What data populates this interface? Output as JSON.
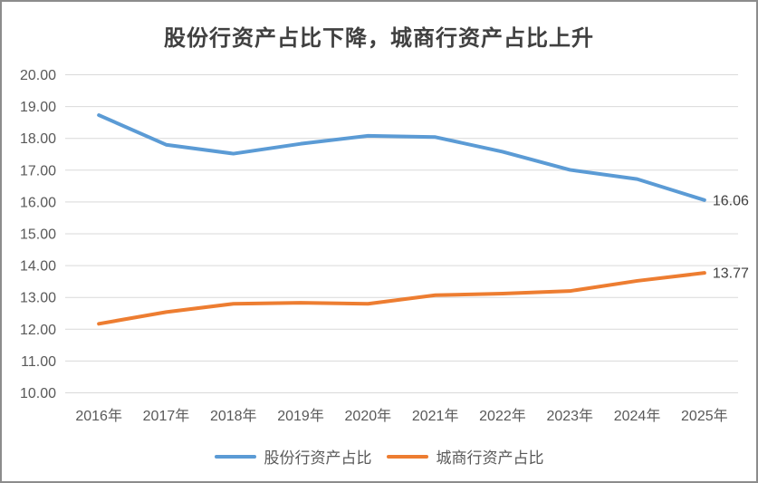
{
  "chart_data": {
    "type": "line",
    "title": "股份行资产占比下降，城商行资产占比上升",
    "categories": [
      "2016年",
      "2017年",
      "2018年",
      "2019年",
      "2020年",
      "2021年",
      "2022年",
      "2023年",
      "2024年",
      "2025年"
    ],
    "series": [
      {
        "name": "股份行资产占比",
        "color": "#5B9BD5",
        "values": [
          18.73,
          17.8,
          17.52,
          17.83,
          18.08,
          18.04,
          17.58,
          17.01,
          16.72,
          16.06
        ],
        "end_label": "16.06"
      },
      {
        "name": "城商行资产占比",
        "color": "#ED7D31",
        "values": [
          12.17,
          12.54,
          12.8,
          12.83,
          12.8,
          13.07,
          13.12,
          13.2,
          13.52,
          13.77
        ],
        "end_label": "13.77"
      }
    ],
    "ylim": [
      10,
      20
    ],
    "ytick_step": 1,
    "ytick_format_decimals": 2,
    "grid": true,
    "legend_position": "bottom"
  },
  "colors": {
    "grid": "#d9d9d9",
    "axis_text": "#595959",
    "title_text": "#404040",
    "data_label_text": "#404040",
    "frame_border": "#8c8c8c"
  }
}
